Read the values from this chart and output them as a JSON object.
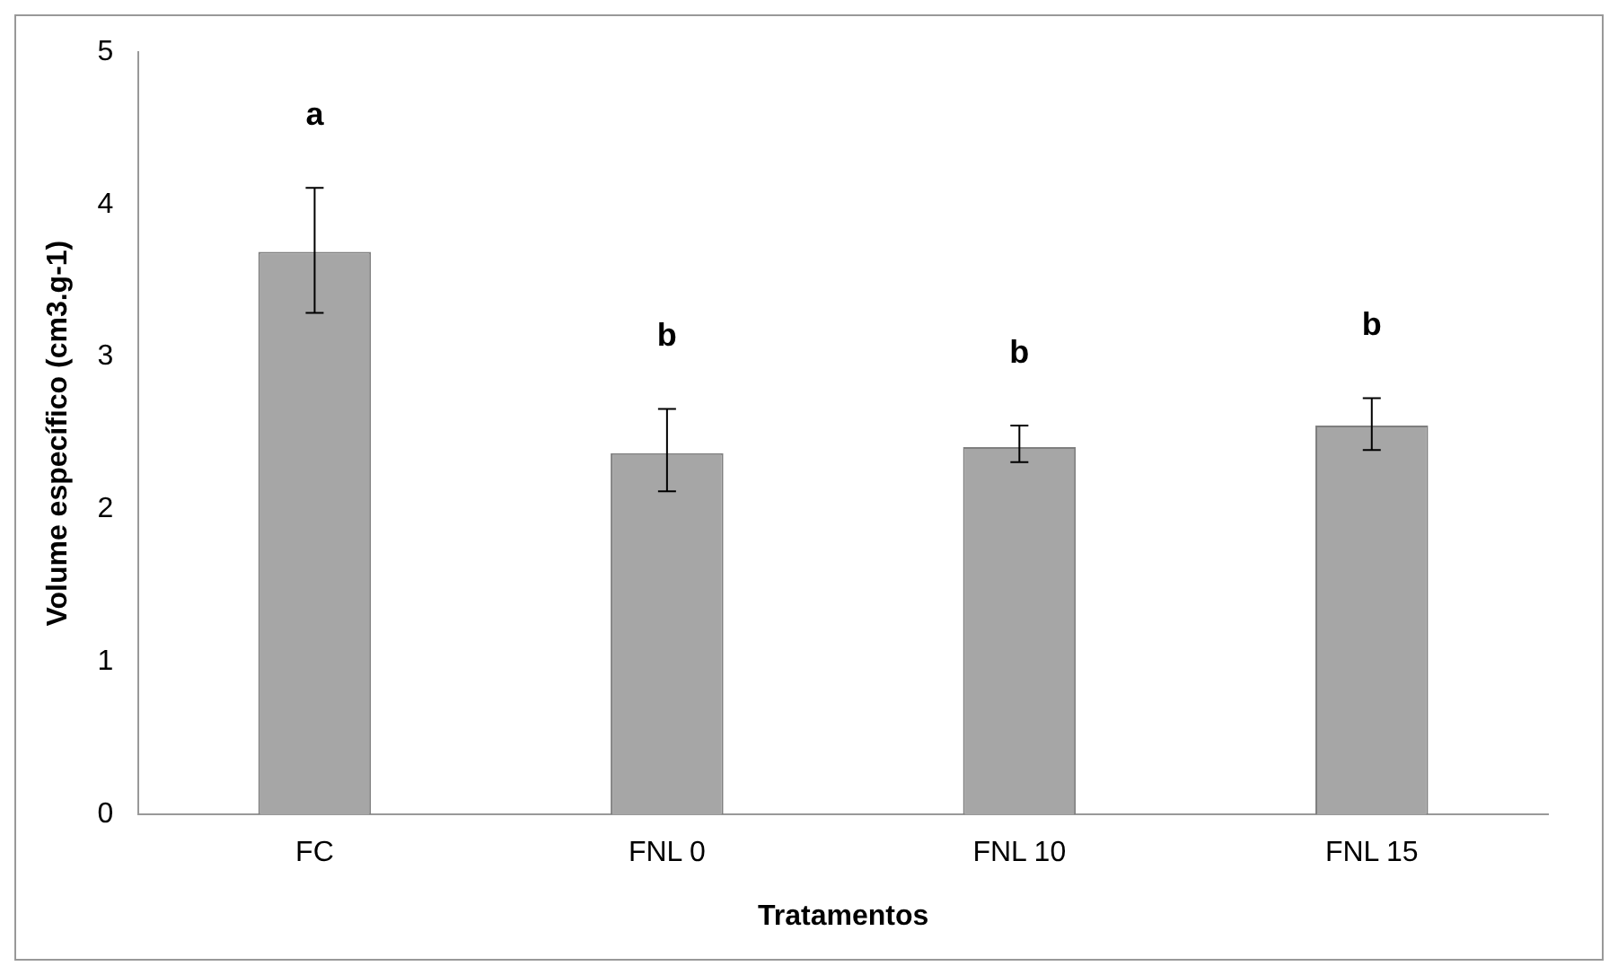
{
  "chart_data": {
    "type": "bar",
    "xlabel": "Tratamentos",
    "ylabel": "Volume específico (cm3.g-1)",
    "categories": [
      "FC",
      "FNL 0",
      "FNL 10",
      "FNL 15"
    ],
    "values": [
      3.69,
      2.37,
      2.41,
      2.55
    ],
    "errors": [
      [
        3.29,
        4.11
      ],
      [
        2.12,
        2.66
      ],
      [
        2.31,
        2.55
      ],
      [
        2.39,
        2.73
      ]
    ],
    "color": "#a6a6a6",
    "ylim": [
      0,
      5
    ],
    "yticks": [
      0,
      1,
      2,
      3,
      4,
      5
    ],
    "grid": false,
    "legend": false,
    "annotations": [
      "a",
      "b",
      "b",
      "b"
    ]
  }
}
